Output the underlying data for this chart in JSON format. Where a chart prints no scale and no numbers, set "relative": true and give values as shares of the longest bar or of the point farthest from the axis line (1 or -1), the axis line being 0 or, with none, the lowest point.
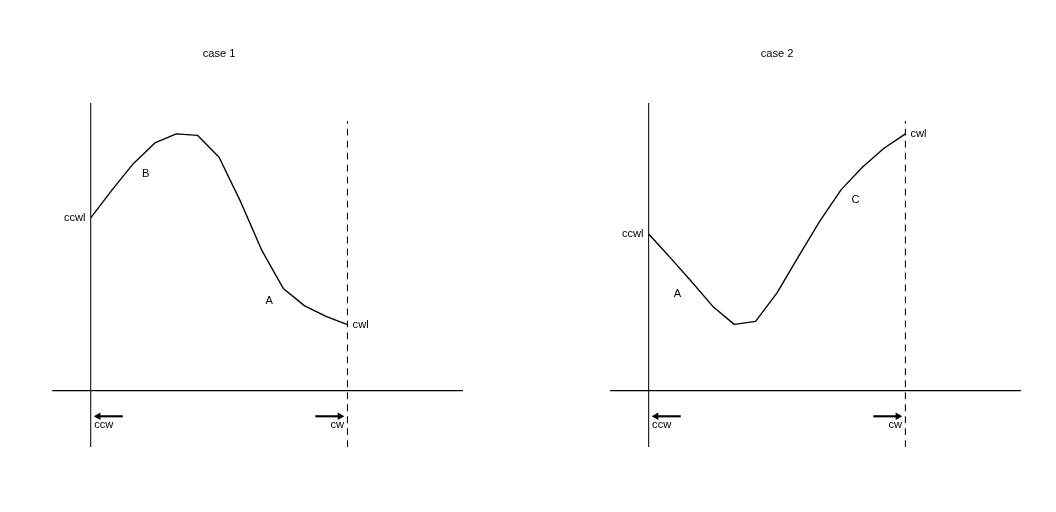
{
  "chart_data": [
    {
      "type": "line",
      "title": "case 1",
      "relative": true,
      "line_style": "solid",
      "categories": [
        null,
        null,
        null,
        null,
        null,
        null,
        null,
        null,
        null,
        null,
        null,
        null,
        null
      ],
      "series": [
        {
          "color": "#000000",
          "values": [
            0.673,
            0.782,
            0.885,
            0.965,
            1.0,
            0.994,
            0.909,
            0.737,
            0.546,
            0.398,
            0.33,
            0.289,
            0.257
          ]
        }
      ],
      "annotations": [
        "ccwl",
        "cwl",
        "ccw",
        "cw",
        "B",
        "A"
      ]
    },
    {
      "type": "line",
      "title": "case 2",
      "relative": true,
      "line_style": "solid",
      "categories": [
        null,
        null,
        null,
        null,
        null,
        null,
        null,
        null,
        null,
        null,
        null,
        null,
        null
      ],
      "series": [
        {
          "color": "#000000",
          "values": [
            0.61,
            0.519,
            0.425,
            0.328,
            0.258,
            0.27,
            0.381,
            0.522,
            0.66,
            0.783,
            0.871,
            0.944,
            1.0
          ]
        }
      ],
      "annotations": [
        "ccwl",
        "cwl",
        "ccw",
        "cw",
        "A",
        "C"
      ]
    }
  ]
}
